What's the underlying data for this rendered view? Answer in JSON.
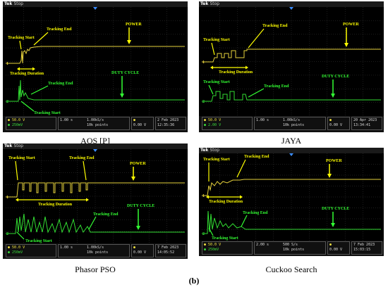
{
  "figure_label": "(b)",
  "colors": {
    "power": "#e6d23c",
    "duty": "#32dc32",
    "annotation_yellow": "#ffff00",
    "annotation_green": "#33ff33",
    "background": "#000000"
  },
  "panels": [
    {
      "caption": "AOS [P]",
      "brand": "Tek",
      "brand_state": "Stop",
      "annotations": {
        "power": "POWER",
        "duty_cycle": "DUTY CYCLE",
        "tracking_start_top": "Tracking Start",
        "tracking_end_top": "Tracking End",
        "tracking_duration": "Tracking Duration",
        "tracking_end_bottom": "Tracking End",
        "tracking_start_bottom": "Tracking Start"
      },
      "status": {
        "ch1_scale": "50.0 V",
        "ch2_scale": "250mV",
        "timebase": "1.00 s",
        "sample_rate": "1.00kS/s",
        "record_length": "10k points",
        "trigger_level": "0.00 V",
        "date": "2 Feb 2023",
        "time": "12:35:36"
      }
    },
    {
      "caption": "JAYA",
      "brand": "Tek",
      "brand_state": "Stop",
      "annotations": {
        "power": "POWER",
        "duty_cycle": "DUTY CYCLE",
        "tracking_start_top": "Tracking Start",
        "tracking_end_top": "Tracking End",
        "tracking_duration": "Tracking Duration",
        "tracking_end_bottom": "Tracking End",
        "tracking_start_bottom": "Tracking Start"
      },
      "status": {
        "ch1_scale": "50.0 V",
        "ch2_scale": "2.00 V",
        "timebase": "1.00 s",
        "sample_rate": "1.00kS/s",
        "record_length": "10k points",
        "trigger_level": "0.00 V",
        "date": "20 Apr 2023",
        "time": "13:34:41"
      }
    },
    {
      "caption": "Phasor PSO",
      "brand": "Tek",
      "brand_state": "Stop",
      "annotations": {
        "power": "POWER",
        "duty_cycle": "DUTY CYCLE",
        "tracking_start_top": "Tracking Start",
        "tracking_end_top": "Tracking End",
        "tracking_duration": "Tracking Duration",
        "tracking_end_bottom": "Tracking End",
        "tracking_start_bottom": "Tracking Start"
      },
      "status": {
        "ch1_scale": "50.0 V",
        "ch2_scale": "250mV",
        "timebase": "1.00 s",
        "sample_rate": "1.00kS/s",
        "record_length": "10k points",
        "trigger_level": "0.00 V",
        "date": "7 Feb 2023",
        "time": "14:05:52"
      }
    },
    {
      "caption": "Cuckoo Search",
      "brand": "Tek",
      "brand_state": "Stop",
      "annotations": {
        "power": "POWER",
        "duty_cycle": "DUTY CYCLE",
        "tracking_start_top": "Tracking Start",
        "tracking_end_top": "Tracking End",
        "tracking_duration": "Tracking Duration",
        "tracking_end_bottom": "Tracking End",
        "tracking_start_bottom": "Tracking Start"
      },
      "status": {
        "ch1_scale": "50.0 V",
        "ch2_scale": "250mV",
        "timebase": "2.00 s",
        "sample_rate": "500 S/s",
        "record_length": "10k points",
        "trigger_level": "0.00 V",
        "date": "7 Feb 2023",
        "time": "15:03:15"
      }
    }
  ]
}
